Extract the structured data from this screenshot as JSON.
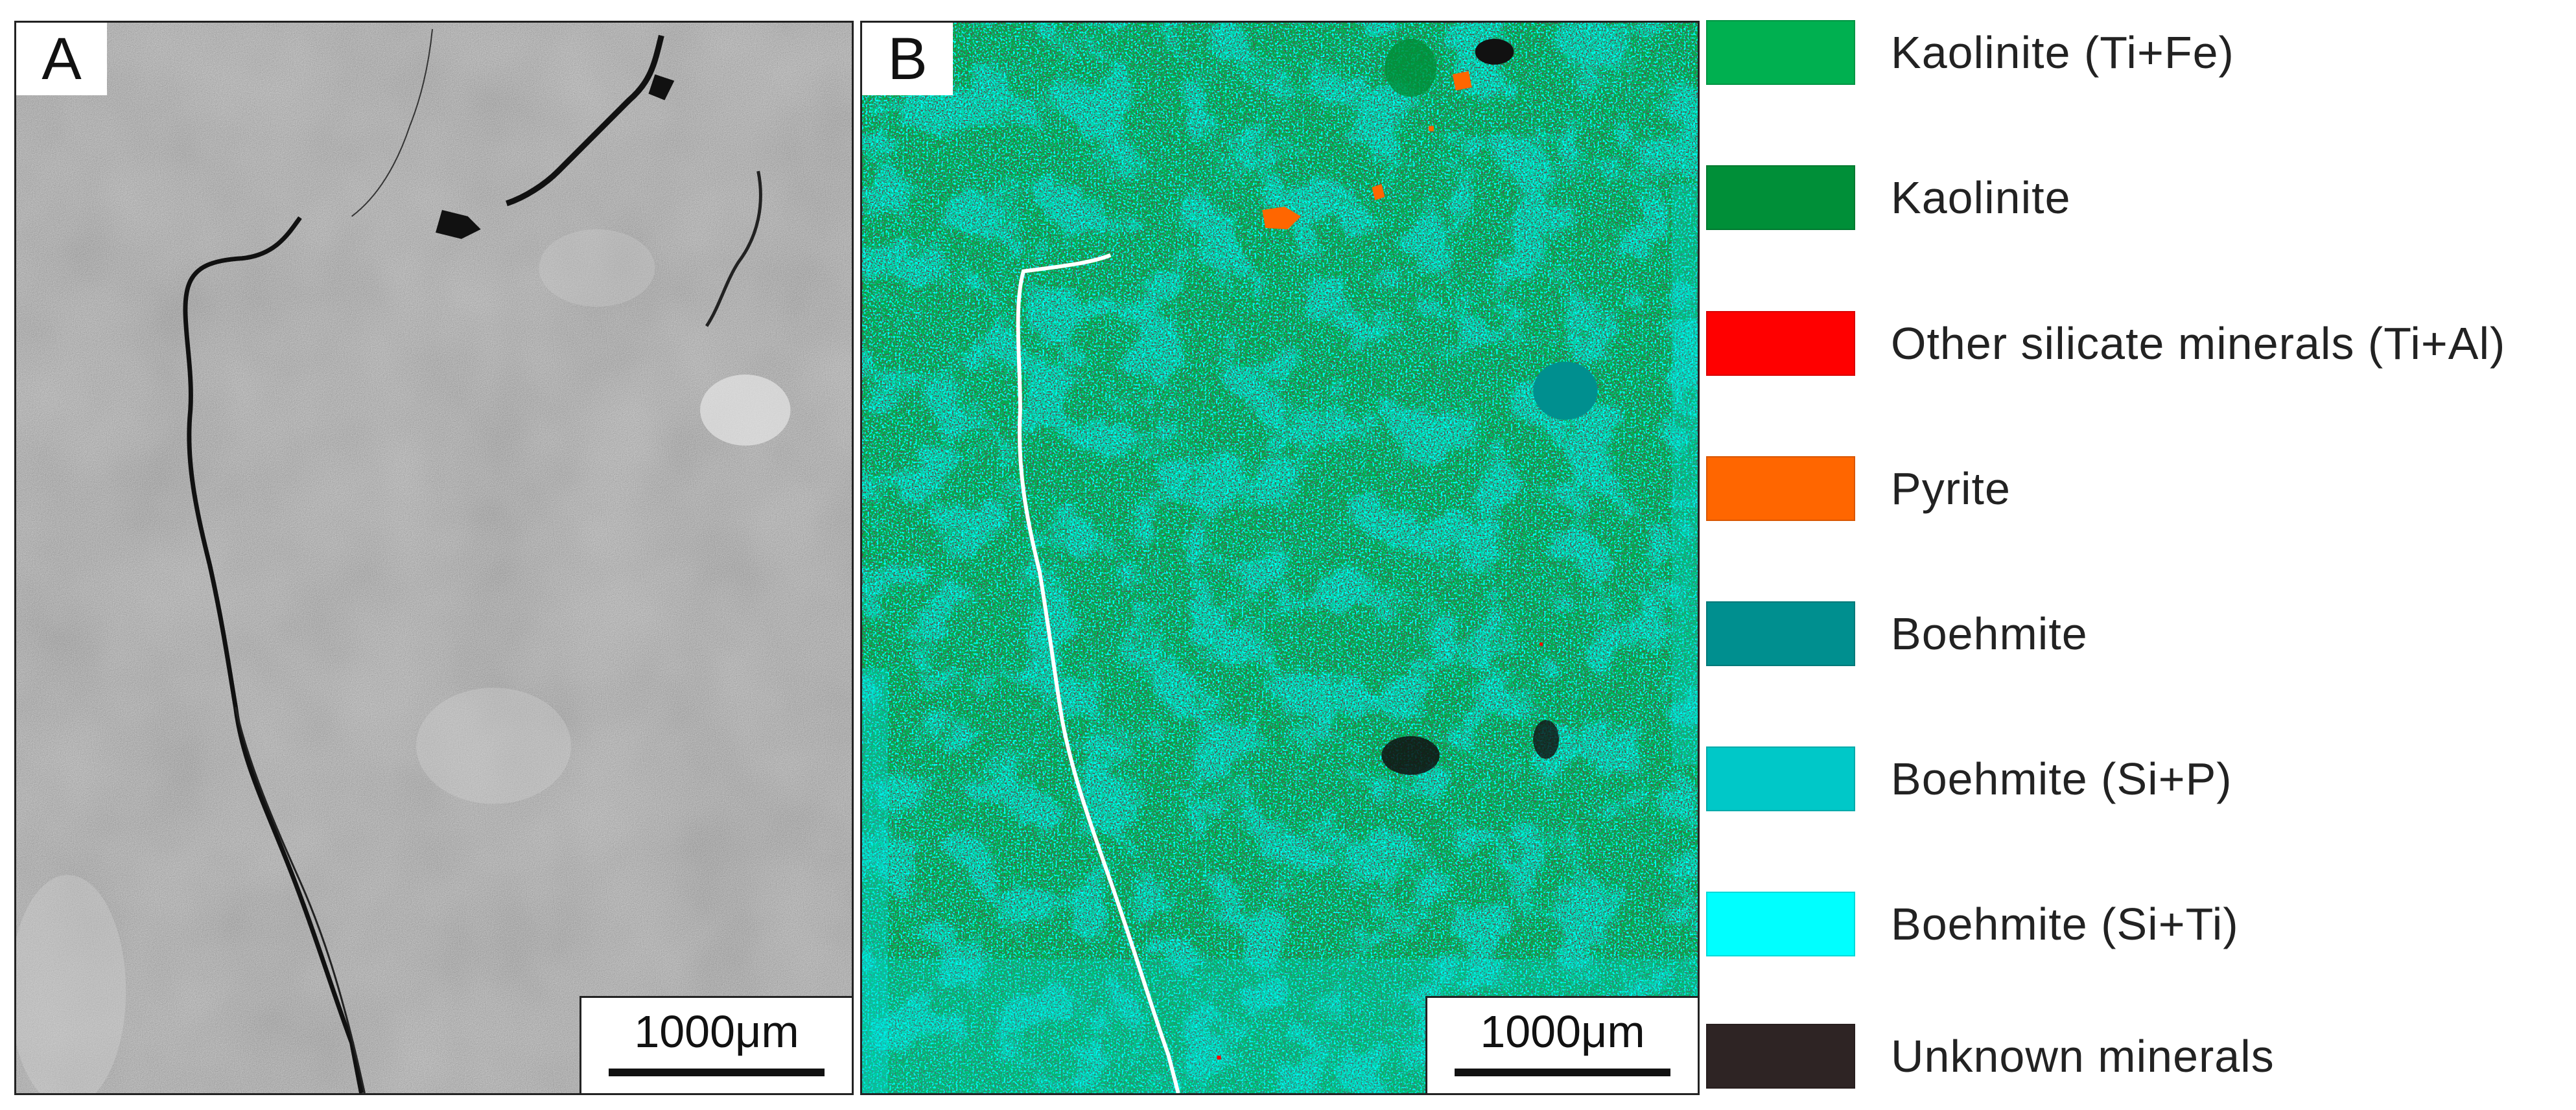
{
  "panels": [
    {
      "label": "A",
      "scale_text": "1000μm"
    },
    {
      "label": "B",
      "scale_text": "1000μm"
    }
  ],
  "legend": [
    {
      "label": "Kaolinite (Ti+Fe)",
      "color": "#00b050"
    },
    {
      "label": "Kaolinite",
      "color": "#008f38"
    },
    {
      "label": "Other silicate minerals (Ti+Al)",
      "color": "#ff0000"
    },
    {
      "label": "Pyrite",
      "color": "#ff6600"
    },
    {
      "label": "Boehmite",
      "color": "#008f8f"
    },
    {
      "label": "Boehmite (Si+P)",
      "color": "#00c8c8"
    },
    {
      "label": "Boehmite (Si+Ti)",
      "color": "#00ffff"
    },
    {
      "label": "Unknown minerals",
      "color": "#2e2424"
    }
  ]
}
